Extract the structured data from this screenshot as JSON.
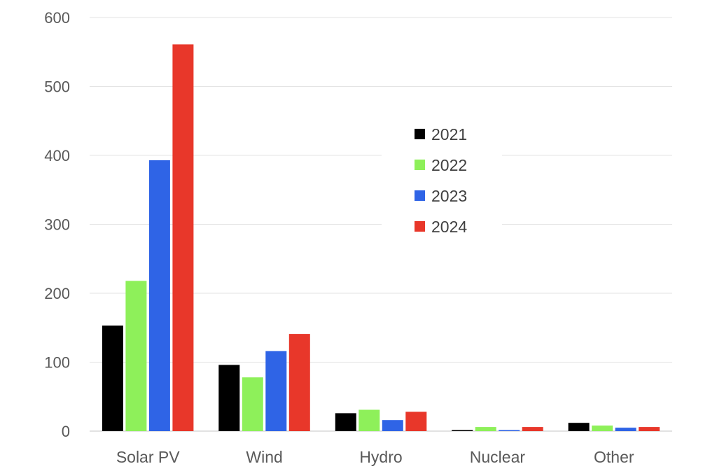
{
  "chart_data": {
    "type": "bar",
    "title": "",
    "xlabel": "",
    "ylabel": "",
    "categories": [
      "Solar PV",
      "Wind",
      "Hydro",
      "Nuclear",
      "Other"
    ],
    "series": [
      {
        "name": "2021",
        "color": "#000000",
        "values": [
          153,
          96,
          26,
          1,
          12
        ]
      },
      {
        "name": "2022",
        "color": "#8ef05a",
        "values": [
          218,
          78,
          31,
          6,
          8
        ]
      },
      {
        "name": "2023",
        "color": "#2f64e6",
        "values": [
          393,
          116,
          16,
          1,
          5
        ]
      },
      {
        "name": "2024",
        "color": "#e8372a",
        "values": [
          561,
          141,
          28,
          6,
          6
        ]
      }
    ],
    "ylim": [
      0,
      600
    ],
    "yticks": [
      0,
      100,
      200,
      300,
      400,
      500,
      600
    ],
    "grid": true,
    "legend_position": "upper-center"
  }
}
